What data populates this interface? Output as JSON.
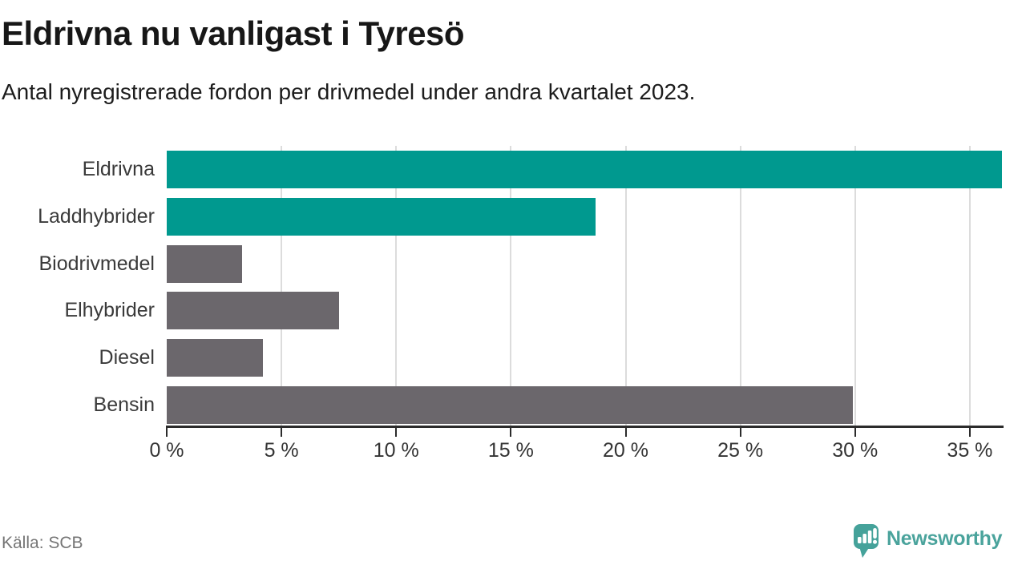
{
  "header": {
    "title": "Eldrivna nu vanligast i Tyresö",
    "subtitle": "Antal nyregistrerade fordon per drivmedel under andra kvartalet 2023."
  },
  "footer": {
    "source": "Källa: SCB",
    "brand": "Newsworthy"
  },
  "colors": {
    "accent_teal": "#00998F",
    "muted_gray": "#6B676C",
    "brand_teal": "#4AA39C",
    "axis": "#2b2b2b",
    "grid": "#dcdcdc"
  },
  "chart_data": {
    "type": "bar",
    "orientation": "horizontal",
    "title": "Eldrivna nu vanligast i Tyresö",
    "subtitle": "Antal nyregistrerade fordon per drivmedel under andra kvartalet 2023.",
    "xlabel": "",
    "ylabel": "",
    "unit": "%",
    "categories": [
      "Eldrivna",
      "Laddhybrider",
      "Biodrivmedel",
      "Elhybrider",
      "Diesel",
      "Bensin"
    ],
    "values": [
      36.4,
      18.7,
      3.3,
      7.5,
      4.2,
      29.9
    ],
    "colors": [
      "#00998F",
      "#00998F",
      "#6B676C",
      "#6B676C",
      "#6B676C",
      "#6B676C"
    ],
    "xlim": [
      0,
      36.4
    ],
    "xticks": [
      0,
      5,
      10,
      15,
      20,
      25,
      30,
      35
    ],
    "xtick_labels": [
      "0 %",
      "5 %",
      "10 %",
      "15 %",
      "20 %",
      "25 %",
      "30 %",
      "35 %"
    ],
    "grid": true,
    "legend": false,
    "source": "SCB"
  }
}
